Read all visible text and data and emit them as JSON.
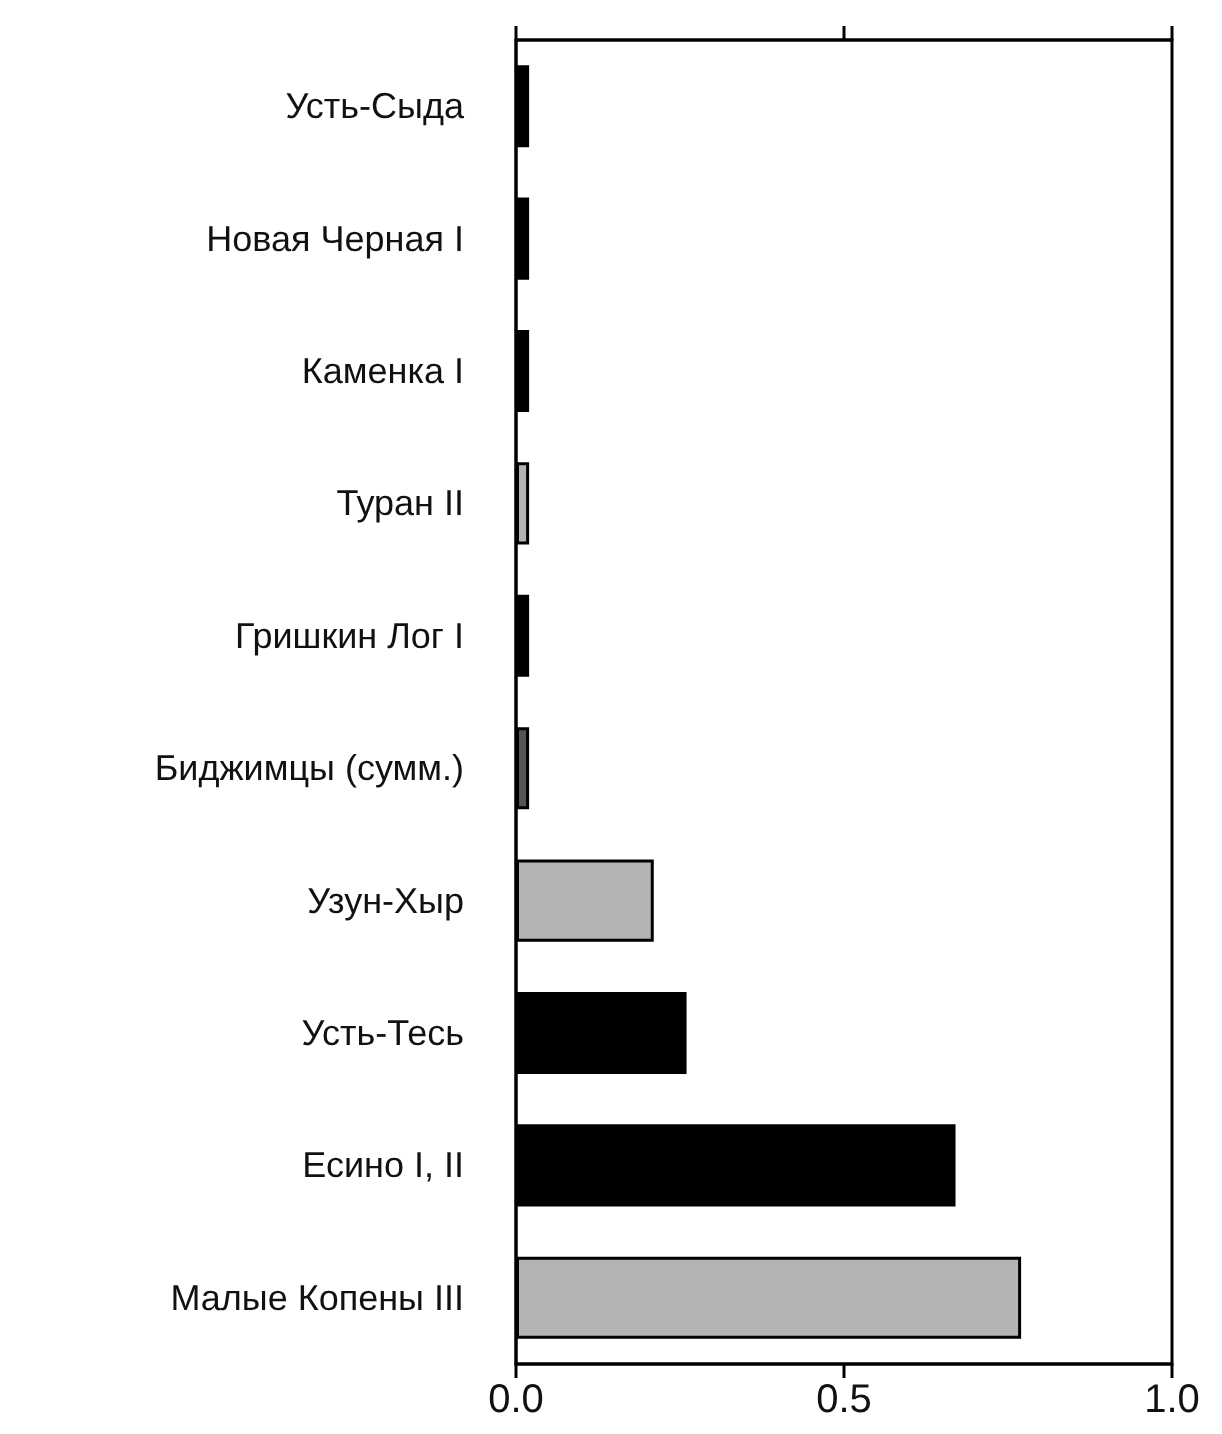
{
  "chart_data": {
    "type": "bar",
    "orientation": "horizontal",
    "categories": [
      "Усть-Сыда",
      "Новая Черная I",
      "Каменка I",
      "Туран II",
      "Гришкин Лог I",
      "Биджимцы (сумм.)",
      "Узун-Хыр",
      "Усть-Тесь",
      "Есино I, II",
      "Малые Копены III"
    ],
    "values": [
      0.02,
      0.02,
      0.02,
      0.02,
      0.02,
      0.02,
      0.21,
      0.26,
      0.67,
      0.77
    ],
    "colors": [
      "#000000",
      "#000000",
      "#000000",
      "#b3b3b3",
      "#000000",
      "#555555",
      "#b3b3b3",
      "#000000",
      "#000000",
      "#b3b3b3"
    ],
    "xlim": [
      0,
      1
    ],
    "xticks": [
      {
        "value": 0,
        "label": "0.0"
      },
      {
        "value": 0.5,
        "label": "0.5"
      },
      {
        "value": 1,
        "label": "1.0"
      }
    ],
    "grid": false
  }
}
